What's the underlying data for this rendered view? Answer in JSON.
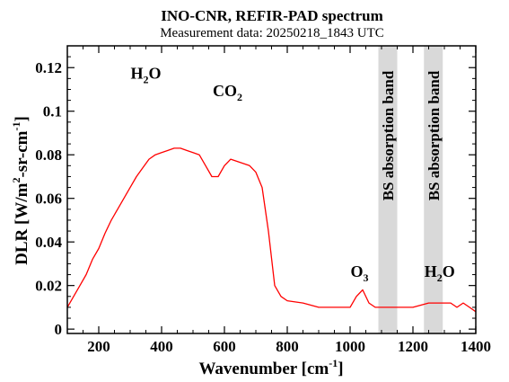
{
  "chart_data": {
    "type": "line",
    "title": "INO-CNR, REFIR-PAD spectrum",
    "subtitle": "Measurement data: 20250218_1843 UTC",
    "xlabel": {
      "base": "Wavenumber [cm",
      "sup": "-1",
      "end": "]"
    },
    "ylabel": {
      "a": "DLR [W/m",
      "sup1": "2",
      "b": "-sr-cm",
      "sup2": "-1",
      "c": "]"
    },
    "xlim": [
      100,
      1400
    ],
    "ylim": [
      -0.002,
      0.13
    ],
    "xticks": [
      200,
      400,
      600,
      800,
      1000,
      1200,
      1400
    ],
    "yticks": [
      0,
      0.02,
      0.04,
      0.06,
      0.08,
      0.1,
      0.12
    ],
    "ytick_labels": [
      "0",
      "0.02",
      "0.04",
      "0.06",
      "0.08",
      "0.1",
      "0.12"
    ],
    "line_color": "#ff0000",
    "bands": [
      {
        "label": "BS absorption band",
        "x0": 1090,
        "x1": 1150,
        "color": "#d9d9d9"
      },
      {
        "label": "BS absorption band",
        "x0": 1235,
        "x1": 1295,
        "color": "#d9d9d9"
      }
    ],
    "annotations": [
      {
        "name": "h2o",
        "base": "H",
        "sub": "2",
        "end": "O",
        "x": 350,
        "y": 0.115
      },
      {
        "name": "co2",
        "base": "CO",
        "sub": "2",
        "end": "",
        "x": 610,
        "y": 0.107
      },
      {
        "name": "o3",
        "base": "O",
        "sub": "3",
        "end": "",
        "x": 1030,
        "y": 0.024
      },
      {
        "name": "h2o-2",
        "base": "H",
        "sub": "2",
        "end": "O",
        "x": 1285,
        "y": 0.024
      }
    ],
    "series": [
      {
        "x": [
          100,
          120,
          140,
          160,
          180,
          200,
          220,
          240,
          260,
          280,
          300,
          320,
          340,
          360,
          380,
          400,
          420,
          440,
          460,
          480,
          500,
          520,
          540,
          560,
          580,
          600,
          620,
          640,
          660,
          680,
          700,
          720,
          740,
          760,
          780,
          800,
          850,
          900,
          950,
          1000,
          1020,
          1040,
          1060,
          1080,
          1100,
          1150,
          1200,
          1250,
          1300,
          1320,
          1340,
          1360,
          1380,
          1400
        ],
        "y": [
          0.01,
          0.015,
          0.02,
          0.025,
          0.032,
          0.037,
          0.044,
          0.05,
          0.055,
          0.06,
          0.065,
          0.07,
          0.074,
          0.078,
          0.08,
          0.081,
          0.082,
          0.083,
          0.083,
          0.082,
          0.081,
          0.08,
          0.075,
          0.07,
          0.07,
          0.075,
          0.078,
          0.077,
          0.076,
          0.075,
          0.072,
          0.065,
          0.045,
          0.02,
          0.015,
          0.013,
          0.012,
          0.01,
          0.01,
          0.01,
          0.015,
          0.018,
          0.012,
          0.01,
          0.01,
          0.01,
          0.01,
          0.012,
          0.012,
          0.012,
          0.01,
          0.012,
          0.01,
          0.008
        ]
      }
    ]
  }
}
